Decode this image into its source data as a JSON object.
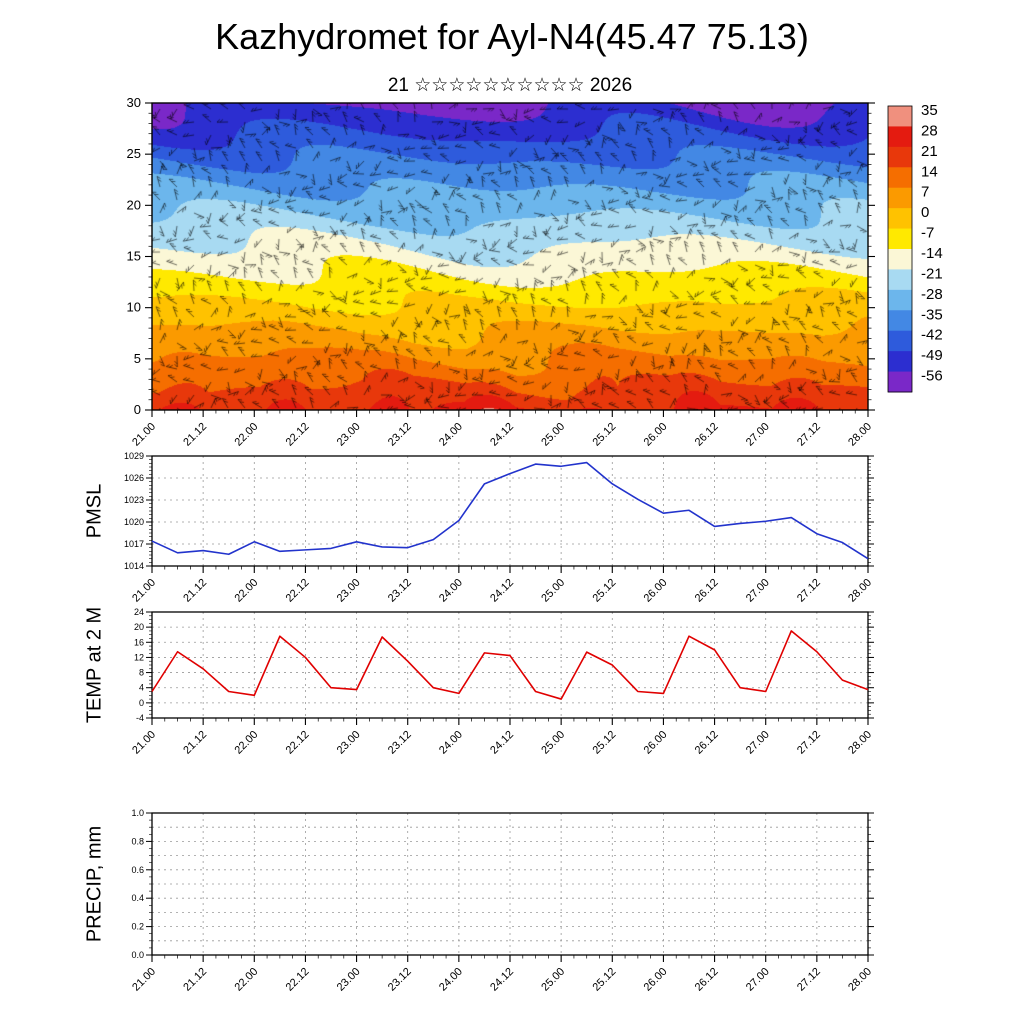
{
  "title": "Kazhydromet for Ayl-N4(45.47 75.13)",
  "subtitle": "21 ☆☆☆☆☆☆☆☆☆☆ 2026",
  "x_axis": {
    "start": 21,
    "end": 28,
    "major_labels": [
      "21.00",
      "21.12",
      "22.00",
      "22.12",
      "23.00",
      "23.12",
      "24.00",
      "24.12",
      "25.00",
      "25.12",
      "26.00",
      "26.12",
      "27.00",
      "27.12",
      "28.00"
    ]
  },
  "panels": {
    "pmsl": {
      "label": "PMSL"
    },
    "temp": {
      "label": "TEMP at 2 M"
    },
    "precip": {
      "label": "PRECIP, mm"
    }
  },
  "chart_data": [
    {
      "id": "upper_air",
      "type": "heatmap",
      "description": "Upper-air temperature (deg C) time-height cross-section with wind barbs",
      "ylim": [
        0,
        30
      ],
      "y_ticks": [
        "0",
        "5",
        "10",
        "15",
        "20",
        "25",
        "30"
      ],
      "colorbar_labels": [
        "35",
        "28",
        "21",
        "14",
        "7",
        "0",
        "-7",
        "-14",
        "-21",
        "-28",
        "-35",
        "-42",
        "-49",
        "-56"
      ],
      "colorbar_colors": [
        "#f0907e",
        "#e41b10",
        "#e8380b",
        "#f56e00",
        "#fb9a00",
        "#ffc200",
        "#ffe900",
        "#fbf7d6",
        "#a8daf2",
        "#6cb6ec",
        "#4388e4",
        "#2e5bdc",
        "#2c2ed0",
        "#7a28c8"
      ]
    },
    {
      "id": "pmsl",
      "type": "line",
      "name": "PMSL",
      "color": "#2233cc",
      "ylim": [
        1014,
        1029
      ],
      "y_ticks": [
        "1014",
        "1017",
        "1020",
        "1023",
        "1026",
        "1029"
      ],
      "x": [
        21,
        21.25,
        21.5,
        21.75,
        22,
        22.25,
        22.5,
        22.75,
        23,
        23.25,
        23.5,
        23.75,
        24,
        24.25,
        24.5,
        24.75,
        25,
        25.25,
        25.5,
        25.75,
        26,
        26.25,
        26.5,
        26.75,
        27,
        27.25,
        27.5,
        27.75,
        28
      ],
      "values": [
        1017.4,
        1015.8,
        1016.1,
        1015.6,
        1017.3,
        1016.0,
        1016.2,
        1016.4,
        1017.3,
        1016.6,
        1016.5,
        1017.6,
        1020.2,
        1025.2,
        1026.6,
        1027.9,
        1027.6,
        1028.1,
        1025.2,
        1023.1,
        1021.2,
        1021.6,
        1019.4,
        1019.8,
        1020.1,
        1020.6,
        1018.4,
        1017.2,
        1015.0
      ]
    },
    {
      "id": "temp",
      "type": "line",
      "name": "TEMP at 2 M",
      "color": "#e00000",
      "ylim": [
        -4,
        24
      ],
      "y_ticks": [
        "-4",
        "0",
        "4",
        "8",
        "12",
        "16",
        "20",
        "24"
      ],
      "x": [
        21,
        21.25,
        21.5,
        21.75,
        22,
        22.25,
        22.5,
        22.75,
        23,
        23.25,
        23.5,
        23.75,
        24,
        24.25,
        24.5,
        24.75,
        25,
        25.25,
        25.5,
        25.75,
        26,
        26.25,
        26.5,
        26.75,
        27,
        27.25,
        27.5,
        27.75,
        28
      ],
      "values": [
        3.0,
        13.5,
        9.0,
        3.0,
        2.0,
        17.6,
        12.0,
        4.0,
        3.5,
        17.4,
        11.0,
        4.0,
        2.5,
        13.2,
        12.5,
        3.0,
        1.0,
        13.4,
        10.0,
        3.0,
        2.5,
        17.6,
        14.0,
        4.0,
        3.0,
        19.0,
        13.5,
        6.0,
        3.5
      ]
    },
    {
      "id": "precip",
      "type": "line",
      "name": "PRECIP, mm",
      "color": "#000000",
      "ylim": [
        0,
        1
      ],
      "y_ticks": [
        "0.0",
        "0.2",
        "0.4",
        "0.6",
        "0.8",
        "1.0"
      ],
      "x": [],
      "values": []
    }
  ]
}
